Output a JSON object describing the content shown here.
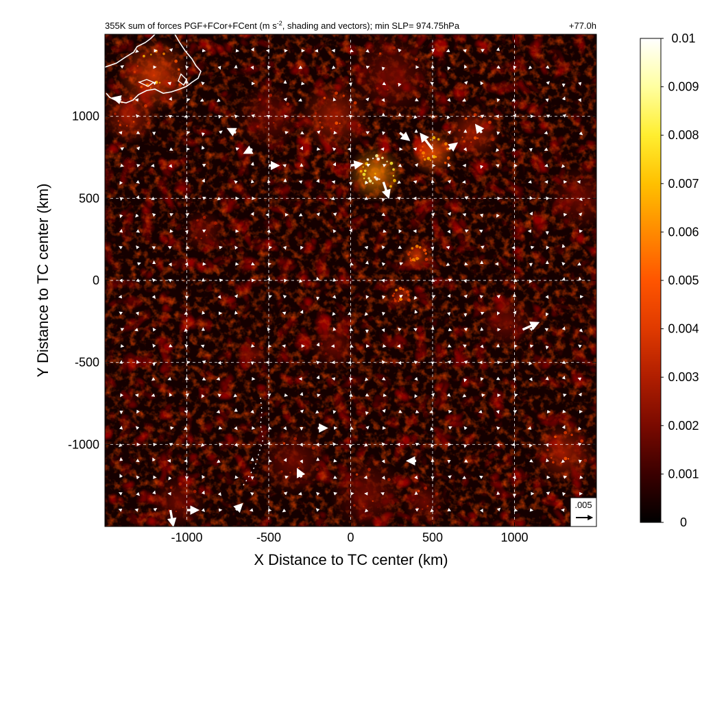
{
  "chart_data": {
    "type": "heatmap",
    "title": "355K sum of forces PGF+FCor+FCent (m s",
    "title_superscript": "-2",
    "title_rest": ", shading and vectors); min SLP= 974.75hPa",
    "time_label": "+77.0h",
    "xlabel": "X Distance to TC center (km)",
    "ylabel": "Y Distance to TC center (km)",
    "xlim": [
      -1500,
      1500
    ],
    "ylim": [
      -1500,
      1500
    ],
    "x_ticks": [
      -1000,
      -500,
      0,
      500,
      1000
    ],
    "x_tick_labels": [
      "-1000",
      "-500",
      "0",
      "500",
      "1000"
    ],
    "y_ticks": [
      -1000,
      -500,
      0,
      500,
      1000
    ],
    "y_tick_labels": [
      "-1000",
      "-500",
      "0",
      "500",
      "1000"
    ],
    "grid": true,
    "colorbar": {
      "min": 0,
      "max": 0.01,
      "ticks": [
        0,
        0.001,
        0.002,
        0.003,
        0.004,
        0.005,
        0.006,
        0.007,
        0.008,
        0.009,
        0.01
      ],
      "tick_labels": [
        "0",
        "0.001",
        "0.002",
        "0.003",
        "0.004",
        "0.005",
        "0.006",
        "0.007",
        "0.008",
        "0.009",
        "0.01"
      ],
      "colors": [
        "#000000",
        "#3a0000",
        "#7a0a00",
        "#b01e00",
        "#e03a00",
        "#ff5500",
        "#ff8a00",
        "#ffc000",
        "#ffee30",
        "#ffffa0",
        "#ffffff"
      ]
    },
    "reference_vector": {
      "label": ".005",
      "magnitude": 0.005
    },
    "hotspots": [
      {
        "x": 150,
        "y": 650,
        "r": 170,
        "v": 0.0065
      },
      {
        "x": 500,
        "y": 780,
        "r": 140,
        "v": 0.0045
      },
      {
        "x": 750,
        "y": 900,
        "r": 170,
        "v": 0.003
      },
      {
        "x": -100,
        "y": 1000,
        "r": 220,
        "v": 0.003
      },
      {
        "x": -1200,
        "y": 1250,
        "r": 230,
        "v": 0.004
      },
      {
        "x": 400,
        "y": 150,
        "r": 90,
        "v": 0.0038
      },
      {
        "x": 300,
        "y": -100,
        "r": 80,
        "v": 0.0034
      },
      {
        "x": -500,
        "y": 1000,
        "r": 200,
        "v": 0.002
      },
      {
        "x": 1300,
        "y": -1050,
        "r": 190,
        "v": 0.003
      },
      {
        "x": -350,
        "y": -1100,
        "r": 210,
        "v": 0.0022
      },
      {
        "x": 100,
        "y": -1300,
        "r": 230,
        "v": 0.0022
      },
      {
        "x": 950,
        "y": -250,
        "r": 170,
        "v": 0.0016
      },
      {
        "x": -900,
        "y": 300,
        "r": 130,
        "v": 0.002
      },
      {
        "x": -1350,
        "y": 1000,
        "r": 170,
        "v": 0.0028
      },
      {
        "x": -600,
        "y": -450,
        "r": 100,
        "v": 0.0018
      },
      {
        "x": -1050,
        "y": -1350,
        "r": 170,
        "v": 0.002
      },
      {
        "x": 450,
        "y": -1350,
        "r": 130,
        "v": 0.0022
      },
      {
        "x": 250,
        "y": 1250,
        "r": 260,
        "v": 0.0022
      },
      {
        "x": 1400,
        "y": 500,
        "r": 200,
        "v": 0.0016
      },
      {
        "x": -100,
        "y": -400,
        "r": 150,
        "v": 0.0015
      }
    ],
    "vector_grid": {
      "xmin": -1400,
      "xmax": 1400,
      "ymin": -1400,
      "ymax": 1400,
      "step": 100
    },
    "large_vectors": [
      {
        "x": 500,
        "y": 800,
        "u": -0.0035,
        "v": 0.0045
      },
      {
        "x": 200,
        "y": 600,
        "u": 0.0015,
        "v": -0.0045
      },
      {
        "x": 1050,
        "y": -300,
        "u": 0.0045,
        "v": 0.002
      },
      {
        "x": -1100,
        "y": -1400,
        "u": 0.0008,
        "v": -0.0045
      },
      {
        "x": -1000,
        "y": -1400,
        "u": 0.003,
        "v": 0.0
      },
      {
        "x": 0,
        "y": 700,
        "u": 0.003,
        "v": 0.0005
      },
      {
        "x": -500,
        "y": 700,
        "u": 0.0025,
        "v": 0.0
      },
      {
        "x": 300,
        "y": 900,
        "u": 0.0025,
        "v": -0.002
      },
      {
        "x": 600,
        "y": 800,
        "u": 0.002,
        "v": 0.0015
      },
      {
        "x": -200,
        "y": -900,
        "u": 0.0022,
        "v": 0.0
      },
      {
        "x": 400,
        "y": -1100,
        "u": -0.0022,
        "v": 0.0
      },
      {
        "x": -1400,
        "y": 1100,
        "u": -0.002,
        "v": 0.0005
      },
      {
        "x": -700,
        "y": 900,
        "u": -0.002,
        "v": 0.001
      },
      {
        "x": -600,
        "y": 800,
        "u": -0.002,
        "v": -0.001
      },
      {
        "x": 800,
        "y": 900,
        "u": -0.0015,
        "v": 0.002
      },
      {
        "x": -700,
        "y": -1400,
        "u": 0.0015,
        "v": 0.0015
      },
      {
        "x": -300,
        "y": -1200,
        "u": -0.001,
        "v": 0.002
      }
    ]
  }
}
